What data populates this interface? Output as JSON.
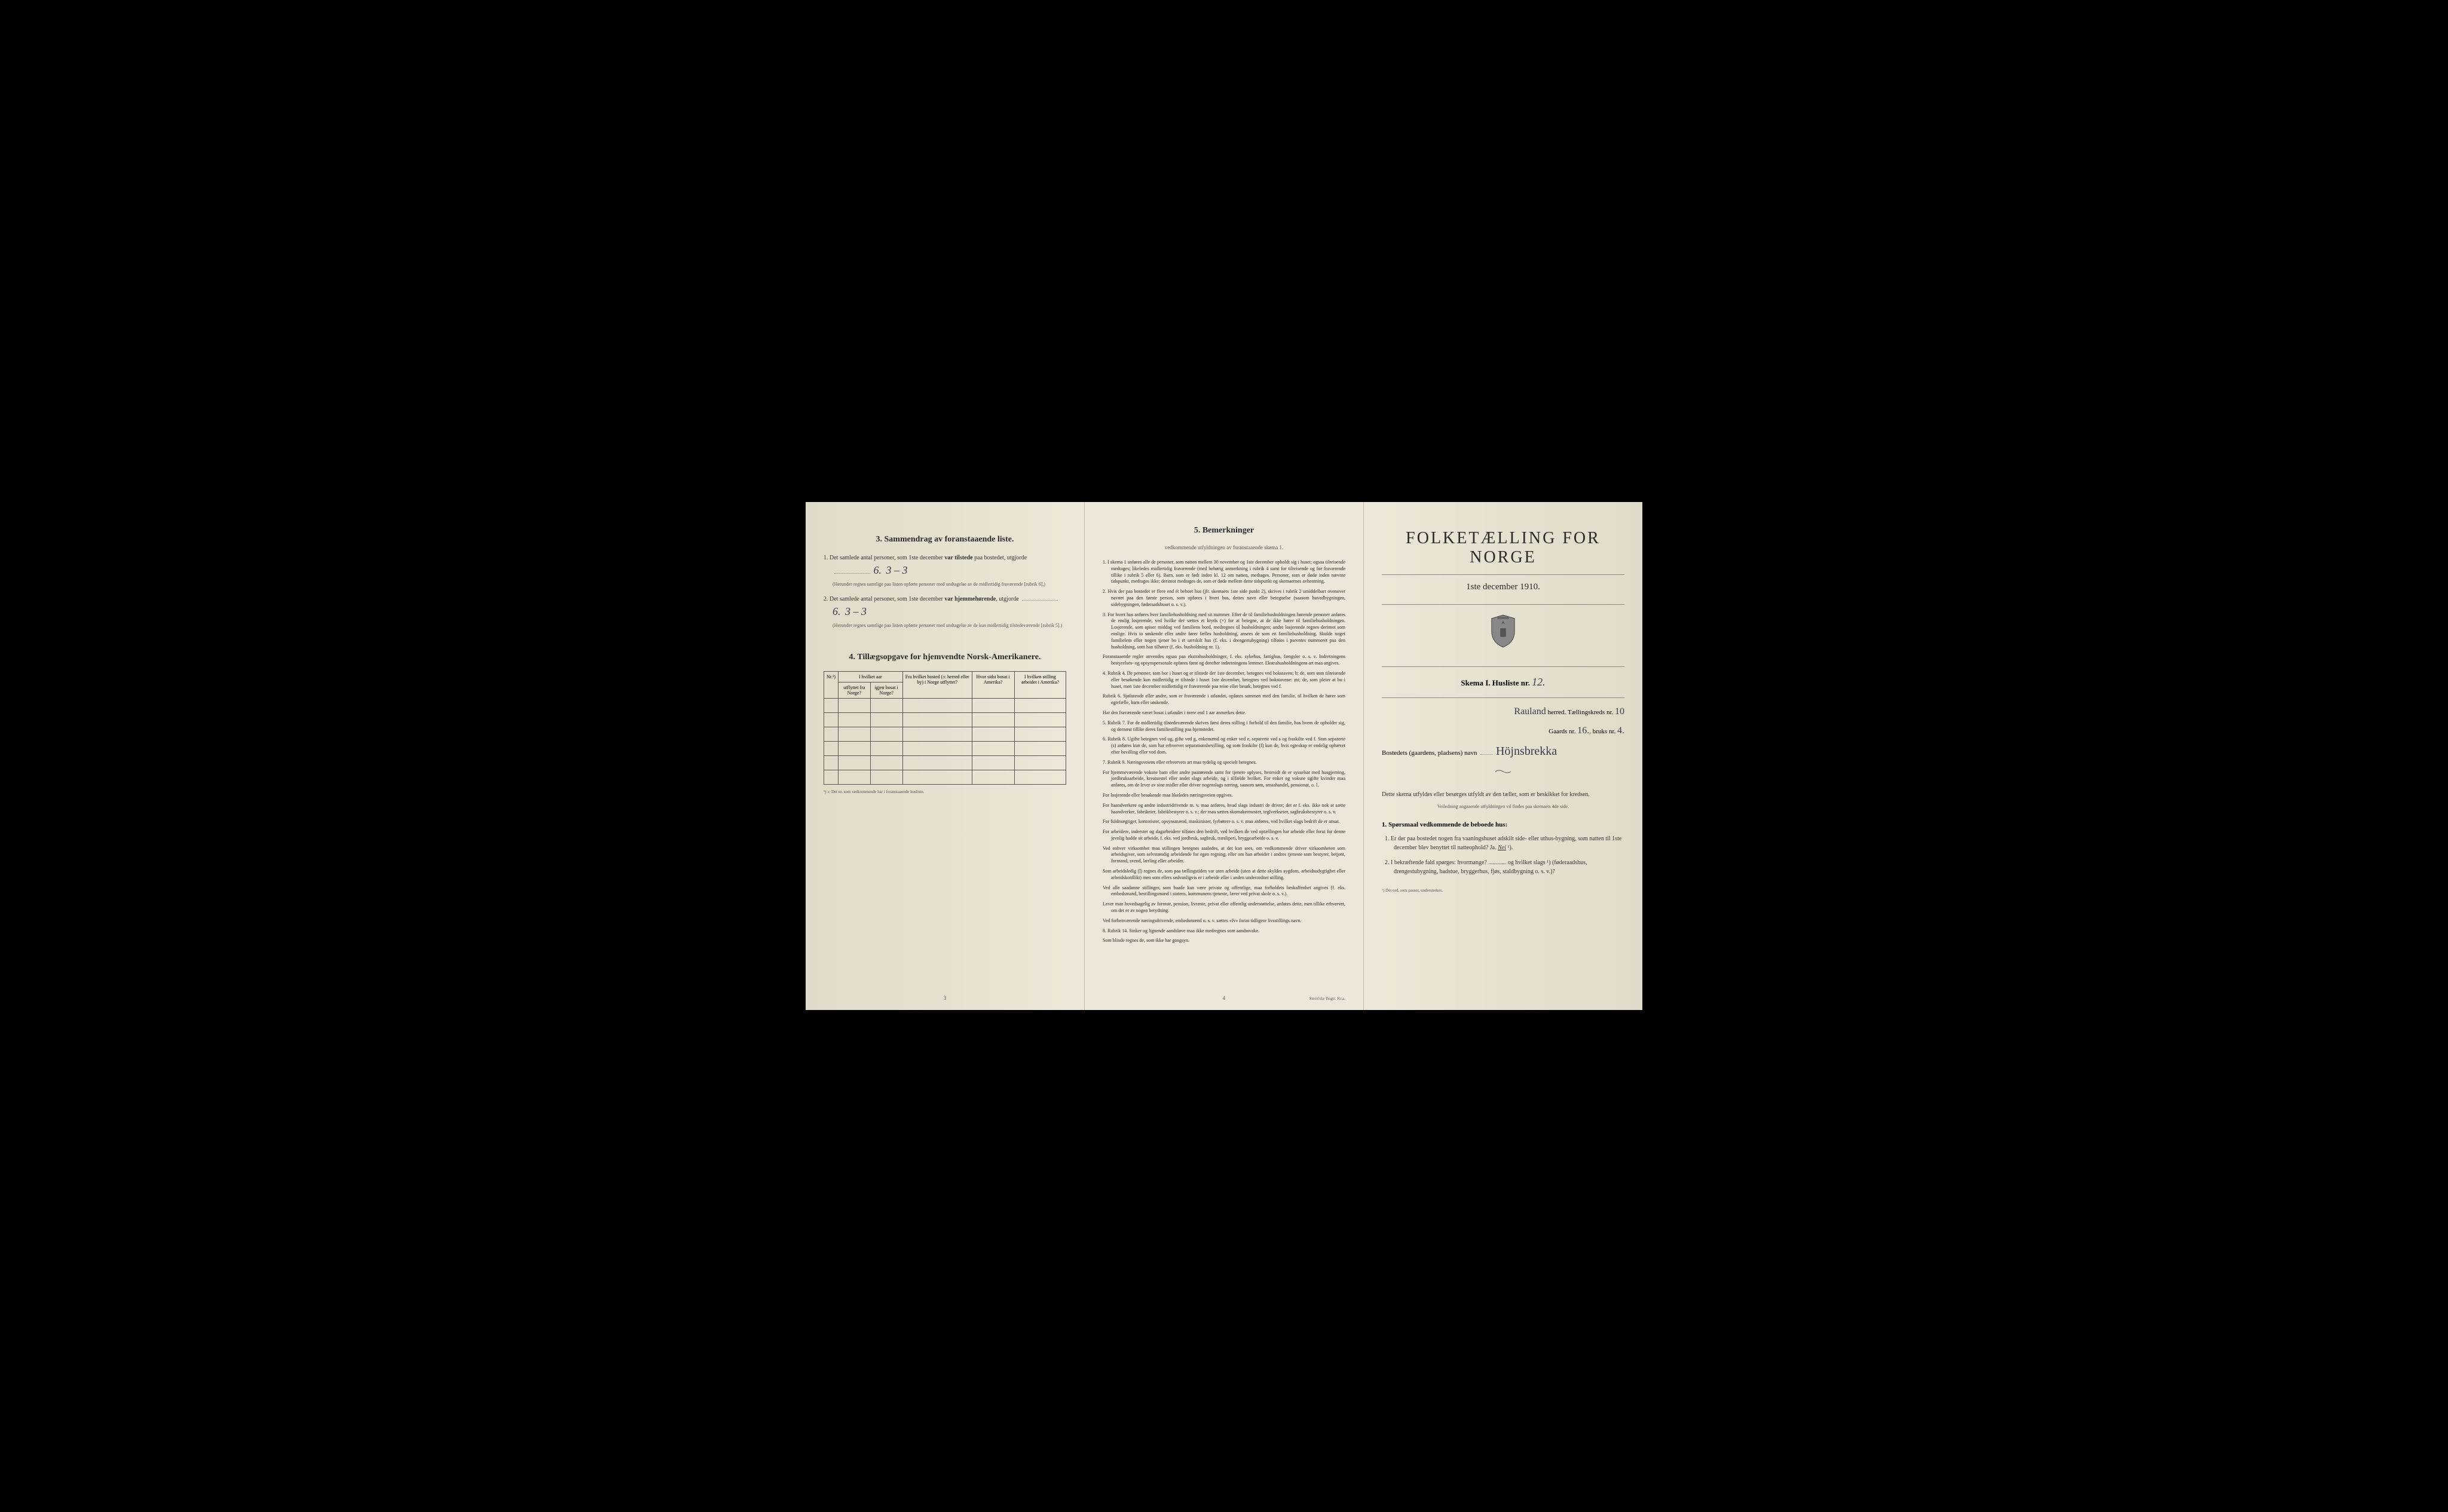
{
  "panel_left": {
    "section3_title": "3.   Sammendrag av foranstaaende liste.",
    "item1_prefix": "1.  Det samlede antal personer, som 1ste december ",
    "item1_bold": "var tilstede",
    "item1_suffix": " paa bostedet, utgjorde",
    "item1_value": "6.",
    "item1_value2": "3 – 3",
    "item1_note": "(Herunder regnes samtlige paa listen opførte personer med undtagelse av de midlertidig fraværende [rubrik 6].)",
    "item2_prefix": "2.  Det samlede antal personer, som 1ste december ",
    "item2_bold": "var hjemmehørende",
    "item2_suffix": ", utgjorde",
    "item2_value": "6.",
    "item2_value2": "3 – 3",
    "item2_note": "(Herunder regnes samtlige paa listen opførte personer med undtagelse av de kun midlertidig tilstedeværende [rubrik 5].)",
    "section4_title": "4.  Tillægsopgave for hjemvendte Norsk-Amerikanere.",
    "table": {
      "headers": {
        "col1": "Nr.¹)",
        "col2a": "I hvilket aar",
        "col2b": "utflyttet fra Norge?",
        "col2c": "igjen bosat i Norge?",
        "col3": "Fra hvilket bosted (ɔ: herred eller by) i Norge utflyttet?",
        "col4": "Hvor sidst bosat i Amerika?",
        "col5": "I hvilken stilling arbeidet i Amerika?"
      },
      "rows": 6
    },
    "footnote": "¹) ɔ: Det nr. som vedkommende har i foranstaaende husliste.",
    "page_num": "3"
  },
  "panel_center": {
    "title": "5.   Bemerkninger",
    "subtitle": "vedkommende utfyldningen av foranstaaende skema 1.",
    "items": [
      "1.  I skema 1 anføres alle de personer, som natten mellem 30 november og 1ste december opholdt sig i huset; ogsaa tilreisende medtages; likeledes midlertidig fraværende (med behørig anmerkning i rubrik 4 samt for tilreisende og for fraværende tillike i rubrik 5 eller 6). Barn, som er født inden kl. 12 om natten, medtages. Personer, som er døde inden nævnte tidspunkt, medtages ikke; derimot medtages de, som er døde mellem dette tidspunkt og skemaernes avhentning.",
      "2.  Hvis der paa bostedet er flere end ét beboet hus (jfr. skemaets 1ste side punkt 2), skrives i rubrik 2 umiddelbart ovenover navnet paa den første person, som opføres i hvert hus, dettes navn eller betegnelse (saasom hovedbygningen, sidebygningen, føderaadshuset o. s. v.).",
      "3.  For hvert hus anføres hver familiehusholdning med sit nummer. Efter de til familiehusholdningen hørende personer anføres de enslig losjerende, ved hvilke der sættes et kryds (×) for at betegne, at de ikke hører til familiehusholdningen. Losjerende, som spiser middag ved familiens bord, medregnes til husholdningen; andre losjerende regnes derimot som enslige. Hvis to søskende eller andre fører fælles husholdning, ansees de som en familiehusholdning. Skulde noget familielem eller nogen tjener bo i et særskilt hus (f. eks. i drengestubygning) tilføies i parentes nummeret paa den husholdning, som han tilhører (f. eks. husholdning nr. 1).",
      "    Foranstaaende regler anvendes ogsaa paa ekstrahusholdninger, f. eks. sykehus, fattighus, fængsler o. s. v. Indretningens bestyrelses- og opsynspersonale opføres først og derefter indretningens lemmer. Ekstrahusholdningens art maa angives.",
      "4.  Rubrik 4.  De personer, som bor i huset og er tilstede der 1ste december, betegnes ved bokstaven: b; de, som som tilreisende eller besøkende kun midlertidig er tilstede i huset 1ste december, betegnes ved bokstavene: mt; de, som pleier at bo i huset, men 1ste december midlertidig er fraværende paa reise eller besøk, betegnes ved f.",
      "    Rubrik 6.  Sjøfarende eller andre, som er fraværende i utlandet, opføres sammen med den familie, til hvilken de hører som egtefælle, barn eller søskende.",
      "    Har den fraværende været bosat i utlandet i mere end 1 aar anmerkes dette.",
      "5.  Rubrik 7.  For de midlertidig tilstedeværende skrives først deres stilling i forhold til den familie, hos hvem de opholder sig, og dernæst tillike deres familiestilling paa hjemstedet.",
      "6.  Rubrik 8.  Ugifte betegnes ved ug, gifte ved g, enkemænd og enker ved e, separerte ved s og fraskilte ved f. Som separerte (s) anføres kun de, som har erhvervet separationsbevilling, og som fraskilte (f) kun de, hvis egteskap er endelig ophævet efter bevilling eller ved dom.",
      "7.  Rubrik 9.  Næringsveiens eller erhvervets art maa tydelig og specielt betegnes.",
      "    For hjemmeværende voksne barn eller andre paarørende samt for tjenere oplyses, hvorvidt de er sysselsat med husgjerning, jordbruksarbeide, kreaturstel eller andet slags arbeide, og i tilfælde hvilket. For enker og voksne ugifte kvinder maa anføres, om de lever av sine midler eller driver nogenslags næring, saasom søm, smaahandel, pensionat, o. l.",
      "    For losjerende eller besøkende maa likeledes næringsveien opgives.",
      "    For haandverkere og andre industridrivende m. v. maa anføres, hvad slags industri de driver; det er f. eks. ikke nok at sætte haandverker, fabrikeier, fabrikbestyrer o. s. v.; der maa sættes skomakermester, teglverkseier, sagbruksbestyrer o. s. v.",
      "    For fuldmægtiger, kontorister, opsynsmænd, maskinister, fyrbøtere o. s. v. maa anføres, ved hvilket slags bedrift de er ansat.",
      "    For arbeidere, inderster og dagarbeidere tilføies den bedrift, ved hvilken de ved optællingen har arbeide eller forut for denne jevnlig hadde sit arbeide, f. eks. ved jordbruk, sagbruk, træsliperi, bryggearbeide o. s. v.",
      "    Ved enhver virksomhet maa stillingen betegnes saaledes, at det kan sees, om vedkommende driver virksomheten som arbeidsgiver, som selvstændig arbeidende for egen regning, eller om han arbeider i andres tjeneste som bestyrer, betjent, formand, svend, lærling eller arbeider.",
      "    Som arbeidsledig (l) regnes de, som paa tællingstiden var uten arbeide (uten at dette skyldes sygdom, arbeidsudygtighet eller arbeidskonflikt) men som ellers sedvanligvis er i arbeide eller i anden underordnet stilling.",
      "    Ved alle saadanne stillinger, som baade kan være private og offentlige, maa forholdets beskaffenhet angives (f. eks. embedsmand, bestillingsmand i statens, kommunens tjeneste, lærer ved privat skole o. s. v.).",
      "    Lever man hovedsagelig av formue, pension, livrente, privat eller offentlig understøttelse, anføres dette, men tillike erhvervet, om det er av nogen betydning.",
      "    Ved forhenværende næringsdrivende, embedsmænd o. s. v. sættes «fv» foran tidligere livsstillings navn.",
      "8.  Rubrik 14.  Sinker og lignende aandsløve maa ikke medregnes som aandssvake.",
      "    Som blinde regnes de, som ikke har gangsyn."
    ],
    "page_num": "4",
    "footer": "Steen'ske Bogtr.  Kr.a."
  },
  "panel_right": {
    "main_title": "FOLKETÆLLING FOR NORGE",
    "date": "1ste december 1910.",
    "skema_label": "Skema I.   Husliste nr.",
    "husliste_nr": "12.",
    "herred_value": "Rauland",
    "herred_label": "herred.   Tællingskreds nr.",
    "kreds_nr": "10",
    "gaards_label": "Gaards nr.",
    "gaards_nr": "16.",
    "bruks_label": "bruks nr.",
    "bruks_nr": "4.",
    "bosted_label": "Bostedets (gaardens, pladsens) navn",
    "bosted_value": "Höjnsbrekka",
    "note": "Dette skema utfyldes eller besørges utfyldt av den tæller, som er beskikket for kredsen.",
    "veiledning": "Veiledning angaaende utfyldningen vil findes paa skemaets 4de side.",
    "q_header": "1. Spørsmaal vedkommende de beboede hus:",
    "q1": "1.  Er der paa bostedet nogen fra vaaningshuset adskilt side- eller uthus-bygning, som natten til 1ste december blev benyttet til natteophold?   Ja.   ",
    "q1_nei": "Nei",
    "q1_sup": " ¹).",
    "q2": "2.  I bekræftende fald spørges: hvormange? ............ og hvilket slags ¹) (føderaadshus, drengestubygning, badstue, bryggerhus, fjøs, staldbygning o. s. v.)?",
    "footnote": "¹)  Det ord, som passer, understrekes."
  }
}
